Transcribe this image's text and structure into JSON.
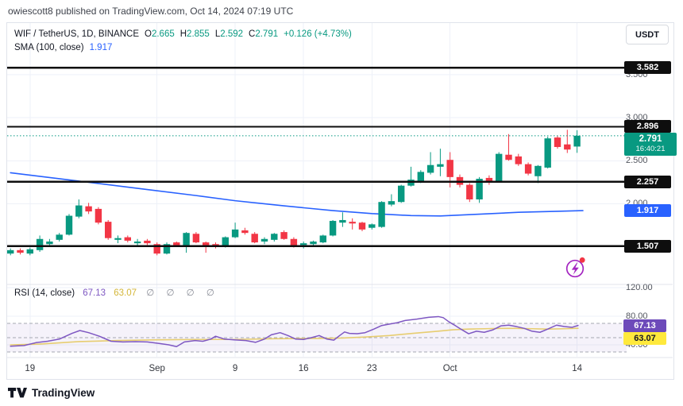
{
  "page": {
    "attribution": "owiescott8 published on TradingView.com, Oct 14, 2024 07:19 UTC"
  },
  "header": {
    "symbol_line": "WIF / TetherUS, 1D, BINANCE",
    "ohlc": {
      "o_label": "O",
      "o": "2.665",
      "h_label": "H",
      "h": "2.855",
      "l_label": "L",
      "l": "2.592",
      "c_label": "C",
      "c": "2.791",
      "change": "+0.126 (+4.73%)"
    },
    "sma_line": {
      "label": "SMA (100, close)",
      "value": "1.917"
    },
    "currency_button": "USDT"
  },
  "price_scale": {
    "level_labels": [
      "3.582",
      "2.896",
      "2.257",
      "1.507"
    ],
    "current": {
      "price": "2.791",
      "countdown": "16:40:21"
    },
    "sma_label": "1.917",
    "ticks": [
      "3.500",
      "3.000",
      "2.500",
      "2.000",
      "1.500"
    ]
  },
  "rsi_pane": {
    "title": "RSI (14, close)",
    "value": "67.13",
    "ma_value": "63.07",
    "empty_slots": "∅ ∅ ∅ ∅",
    "ticks": [
      "120.00",
      "80.00",
      "40.00"
    ],
    "value_label": "67.13",
    "ma_label": "63.07"
  },
  "time_axis": {
    "labels": [
      "19",
      "Sep",
      "9",
      "16",
      "23",
      "Oct",
      "14"
    ]
  },
  "footer": {
    "brand": "TradingView"
  },
  "colors": {
    "up": "#089981",
    "down": "#f23645",
    "sma": "#2962ff",
    "level_line": "#0e0e0e",
    "grid": "#eef1f8",
    "pane_border": "#e0e3eb",
    "rsi_line": "#7e57c2",
    "rsi_ma_line": "#e7cd70",
    "rsi_band_fill": "rgba(126,87,194,0.08)",
    "rsi_band_dash": "#a5a8b1",
    "current_dotted": "#089981",
    "flash_icon": "#a426c1",
    "flash_dot": "#f23645"
  },
  "chart_data": {
    "type": "candlestick",
    "title": "WIF / TetherUS, 1D, BINANCE",
    "symbol": "WIF/TetherUS",
    "interval": "1D",
    "exchange": "BINANCE",
    "ohlc_current": {
      "open": 2.665,
      "high": 2.855,
      "low": 2.592,
      "close": 2.791,
      "change": 0.126,
      "change_pct": 4.73
    },
    "price_range_lines": [
      3.582,
      2.896,
      2.257,
      1.507
    ],
    "current_price": 2.791,
    "sma100_value": 1.917,
    "y_ticks": [
      3.5,
      3.0,
      2.5,
      2.0,
      1.5
    ],
    "x_ticks": [
      {
        "label": "19",
        "index": 2
      },
      {
        "label": "Sep",
        "index": 15
      },
      {
        "label": "9",
        "index": 23
      },
      {
        "label": "16",
        "index": 30
      },
      {
        "label": "23",
        "index": 37
      },
      {
        "label": "Oct",
        "index": 45
      },
      {
        "label": "14",
        "index": 58
      }
    ],
    "candles": [
      [
        1.42,
        1.48,
        1.4,
        1.46
      ],
      [
        1.46,
        1.48,
        1.41,
        1.43
      ],
      [
        1.42,
        1.49,
        1.4,
        1.47
      ],
      [
        1.46,
        1.63,
        1.44,
        1.59
      ],
      [
        1.53,
        1.59,
        1.5,
        1.56
      ],
      [
        1.58,
        1.66,
        1.56,
        1.64
      ],
      [
        1.64,
        1.88,
        1.63,
        1.86
      ],
      [
        1.85,
        2.05,
        1.83,
        1.98
      ],
      [
        1.97,
        2.01,
        1.88,
        1.91
      ],
      [
        1.94,
        1.96,
        1.76,
        1.78
      ],
      [
        1.79,
        1.81,
        1.58,
        1.6
      ],
      [
        1.58,
        1.63,
        1.54,
        1.6
      ],
      [
        1.61,
        1.63,
        1.55,
        1.57
      ],
      [
        1.54,
        1.59,
        1.51,
        1.56
      ],
      [
        1.57,
        1.59,
        1.52,
        1.54
      ],
      [
        1.53,
        1.55,
        1.4,
        1.42
      ],
      [
        1.42,
        1.55,
        1.41,
        1.53
      ],
      [
        1.55,
        1.56,
        1.5,
        1.51
      ],
      [
        1.5,
        1.67,
        1.43,
        1.66
      ],
      [
        1.65,
        1.67,
        1.54,
        1.55
      ],
      [
        1.55,
        1.56,
        1.43,
        1.51
      ],
      [
        1.53,
        1.55,
        1.48,
        1.5
      ],
      [
        1.51,
        1.62,
        1.49,
        1.61
      ],
      [
        1.61,
        1.78,
        1.6,
        1.7
      ],
      [
        1.69,
        1.72,
        1.64,
        1.66
      ],
      [
        1.65,
        1.67,
        1.54,
        1.55
      ],
      [
        1.56,
        1.61,
        1.53,
        1.59
      ],
      [
        1.58,
        1.66,
        1.56,
        1.65
      ],
      [
        1.67,
        1.69,
        1.58,
        1.59
      ],
      [
        1.59,
        1.61,
        1.49,
        1.5
      ],
      [
        1.52,
        1.56,
        1.48,
        1.54
      ],
      [
        1.53,
        1.57,
        1.51,
        1.56
      ],
      [
        1.55,
        1.64,
        1.54,
        1.63
      ],
      [
        1.63,
        1.81,
        1.62,
        1.8
      ],
      [
        1.78,
        1.9,
        1.73,
        1.81
      ],
      [
        1.79,
        1.83,
        1.7,
        1.77
      ],
      [
        1.78,
        1.79,
        1.68,
        1.7
      ],
      [
        1.72,
        1.77,
        1.7,
        1.76
      ],
      [
        1.73,
        2.03,
        1.72,
        2.02
      ],
      [
        1.99,
        2.11,
        1.97,
        2.03
      ],
      [
        2.02,
        2.22,
        2.01,
        2.21
      ],
      [
        2.21,
        2.43,
        2.2,
        2.28
      ],
      [
        2.26,
        2.39,
        2.24,
        2.37
      ],
      [
        2.36,
        2.6,
        2.34,
        2.45
      ],
      [
        2.43,
        2.64,
        2.32,
        2.46
      ],
      [
        2.51,
        2.6,
        2.19,
        2.31
      ],
      [
        2.31,
        2.34,
        2.19,
        2.22
      ],
      [
        2.22,
        2.24,
        2.02,
        2.05
      ],
      [
        2.05,
        2.31,
        2.01,
        2.29
      ],
      [
        2.3,
        2.33,
        2.22,
        2.26
      ],
      [
        2.26,
        2.6,
        2.25,
        2.58
      ],
      [
        2.57,
        2.81,
        2.5,
        2.51
      ],
      [
        2.55,
        2.58,
        2.44,
        2.46
      ],
      [
        2.46,
        2.48,
        2.33,
        2.35
      ],
      [
        2.32,
        2.45,
        2.24,
        2.44
      ],
      [
        2.42,
        2.78,
        2.41,
        2.76
      ],
      [
        2.77,
        2.79,
        2.64,
        2.66
      ],
      [
        2.69,
        2.86,
        2.59,
        2.63
      ],
      [
        2.665,
        2.855,
        2.592,
        2.791
      ]
    ],
    "sma_points": [
      [
        0,
        2.36
      ],
      [
        4,
        2.305
      ],
      [
        9,
        2.235
      ],
      [
        14,
        2.165
      ],
      [
        19,
        2.095
      ],
      [
        23,
        2.035
      ],
      [
        28,
        1.975
      ],
      [
        33,
        1.92
      ],
      [
        37,
        1.885
      ],
      [
        41,
        1.862
      ],
      [
        44,
        1.858
      ],
      [
        48,
        1.878
      ],
      [
        52,
        1.9
      ],
      [
        56,
        1.912
      ],
      [
        58.6,
        1.92
      ]
    ],
    "rsi": {
      "period": 14,
      "value": 67.13,
      "ma_value": 63.07,
      "ticks": [
        120,
        80,
        40
      ],
      "bands": [
        70,
        50,
        30
      ],
      "points": [
        [
          0,
          38
        ],
        [
          1.4,
          39
        ],
        [
          2.6,
          43
        ],
        [
          3.8,
          45
        ],
        [
          5,
          48
        ],
        [
          6.3,
          56
        ],
        [
          7.1,
          60
        ],
        [
          8,
          57
        ],
        [
          9.1,
          52
        ],
        [
          10.3,
          45
        ],
        [
          11.5,
          44
        ],
        [
          12.8,
          44.5
        ],
        [
          14,
          44
        ],
        [
          15.2,
          42
        ],
        [
          16.2,
          40
        ],
        [
          17,
          37.5
        ],
        [
          17.8,
          44
        ],
        [
          18.9,
          46
        ],
        [
          19.7,
          45
        ],
        [
          20.5,
          48
        ],
        [
          21,
          52
        ],
        [
          21.9,
          48
        ],
        [
          22.9,
          47
        ],
        [
          24.1,
          46
        ],
        [
          25.1,
          43.5
        ],
        [
          26,
          48
        ],
        [
          26.7,
          54
        ],
        [
          27.6,
          57
        ],
        [
          28.4,
          53
        ],
        [
          29.2,
          48
        ],
        [
          30,
          47.5
        ],
        [
          30.8,
          50
        ],
        [
          31.6,
          53
        ],
        [
          32.4,
          48
        ],
        [
          33.1,
          46.5
        ],
        [
          33.7,
          53
        ],
        [
          34.2,
          58
        ],
        [
          34.7,
          56
        ],
        [
          35.5,
          55.5
        ],
        [
          36.3,
          57
        ],
        [
          37.2,
          62
        ],
        [
          38,
          67
        ],
        [
          38.8,
          69
        ],
        [
          39.6,
          71
        ],
        [
          40.4,
          74
        ],
        [
          41.6,
          76
        ],
        [
          42.8,
          78.5
        ],
        [
          43.8,
          79.5
        ],
        [
          44.3,
          78
        ],
        [
          44.9,
          72
        ],
        [
          45.4,
          68
        ],
        [
          46.1,
          62
        ],
        [
          46.9,
          55.5
        ],
        [
          47.7,
          59
        ],
        [
          48.5,
          57.5
        ],
        [
          49.4,
          61
        ],
        [
          50.2,
          66.5
        ],
        [
          51,
          67.5
        ],
        [
          51.8,
          65.5
        ],
        [
          52.6,
          63
        ],
        [
          53.4,
          59
        ],
        [
          54.2,
          57.5
        ],
        [
          55,
          62
        ],
        [
          55.9,
          67.5
        ],
        [
          56.7,
          65.5
        ],
        [
          57.5,
          64.5
        ],
        [
          58.1,
          67.1
        ]
      ],
      "ma_points": [
        [
          0,
          40
        ],
        [
          3,
          41
        ],
        [
          7,
          44.5
        ],
        [
          11,
          46
        ],
        [
          15,
          47
        ],
        [
          19,
          47.5
        ],
        [
          23,
          47.5
        ],
        [
          27,
          48.5
        ],
        [
          31.5,
          49
        ],
        [
          34,
          49.5
        ],
        [
          36.5,
          51
        ],
        [
          38.8,
          53
        ],
        [
          41.2,
          56
        ],
        [
          43.7,
          59
        ],
        [
          45.3,
          61
        ],
        [
          46.9,
          62
        ],
        [
          48.5,
          62.5
        ],
        [
          50.2,
          63
        ],
        [
          51.8,
          63
        ],
        [
          53.4,
          62.5
        ],
        [
          55,
          62
        ],
        [
          56.7,
          62.5
        ],
        [
          58.1,
          63.1
        ]
      ]
    }
  }
}
